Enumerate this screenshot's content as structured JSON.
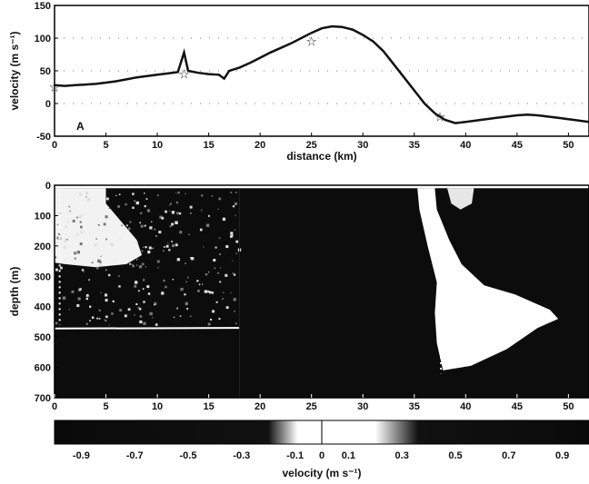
{
  "chart_data": [
    {
      "type": "line",
      "panel_label": "A",
      "xlabel": "distance (km)",
      "ylabel": "velocity (m s⁻¹)",
      "xlim": [
        0,
        52
      ],
      "ylim": [
        -50,
        150
      ],
      "x_ticks": [
        "0",
        "5",
        "10",
        "15",
        "20",
        "25",
        "30",
        "35",
        "40",
        "45",
        "50"
      ],
      "y_ticks": [
        "150",
        "100",
        "50",
        "0",
        "-50"
      ],
      "grid": "dotted horizontal",
      "series": [
        {
          "x": [
            0,
            1,
            2,
            3,
            4,
            5,
            6,
            7,
            8,
            9,
            10,
            11,
            12,
            12.6,
            13,
            14,
            15,
            16,
            16.5,
            17,
            18,
            19,
            20,
            21,
            22,
            23,
            24,
            25,
            26,
            27,
            28,
            29,
            30,
            31,
            32,
            33,
            34,
            35,
            36,
            37,
            38,
            39,
            40,
            41,
            42,
            43,
            44,
            45,
            46,
            47,
            48,
            49,
            50,
            51,
            52
          ],
          "y": [
            28,
            27,
            28,
            29,
            30,
            32,
            34,
            37,
            40,
            42,
            44,
            46,
            48,
            78,
            50,
            47,
            45,
            44,
            38,
            50,
            55,
            62,
            70,
            78,
            85,
            92,
            100,
            108,
            115,
            118,
            117,
            113,
            105,
            95,
            80,
            60,
            40,
            20,
            0,
            -15,
            -25,
            -30,
            -28,
            -26,
            -24,
            -22,
            -20,
            -18,
            -17,
            -18,
            -20,
            -22,
            -24,
            -26,
            -28
          ]
        }
      ],
      "markers": [
        {
          "x": 0,
          "y": 25
        },
        {
          "x": 12.6,
          "y": 45
        },
        {
          "x": 25,
          "y": 95
        },
        {
          "x": 37.5,
          "y": -20
        }
      ]
    },
    {
      "type": "heatmap",
      "xlabel": "",
      "ylabel": "depth (m)",
      "xlim": [
        0,
        52
      ],
      "ylim": [
        700,
        0
      ],
      "x_ticks": [
        "0",
        "5",
        "10",
        "15",
        "20",
        "25",
        "30",
        "35",
        "40",
        "45",
        "50"
      ],
      "y_ticks": [
        "0",
        "100",
        "200",
        "300",
        "400",
        "500",
        "600",
        "700"
      ],
      "colorbar": {
        "label": "velocity (m s⁻¹)",
        "ticks": [
          "-0.9",
          "-0.7",
          "-0.5",
          "-0.3",
          "-0.1",
          "0",
          "0.1",
          "0.3",
          "0.5",
          "0.7",
          "0.9"
        ],
        "range": [
          -1.0,
          1.0
        ],
        "colors": {
          "low": "#0a0a0a",
          "mid": "#ffffff",
          "high": "#0a0a0a"
        }
      }
    }
  ]
}
